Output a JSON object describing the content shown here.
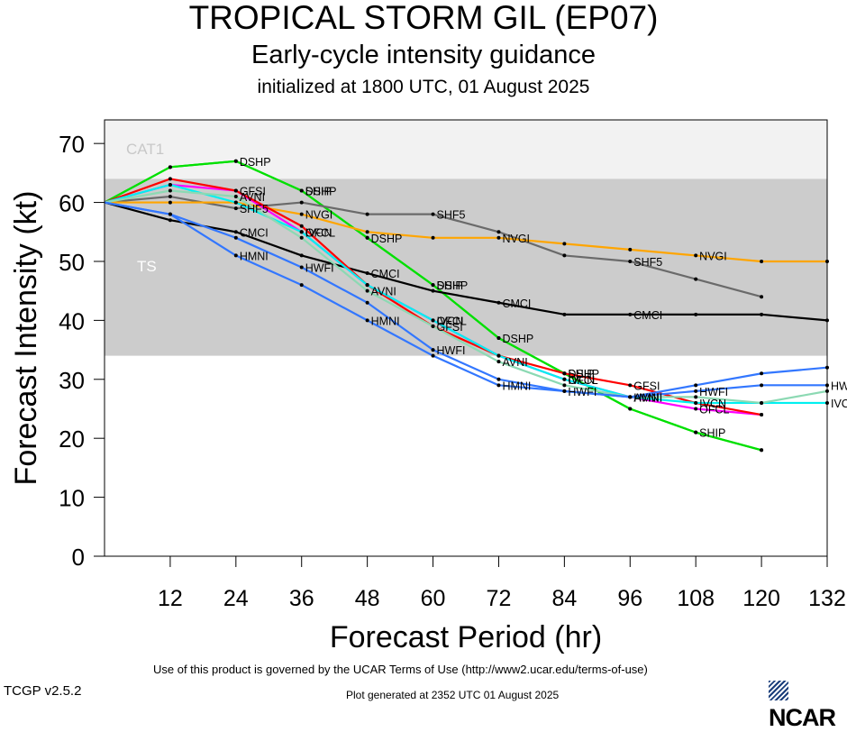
{
  "header": {
    "title": "TROPICAL STORM GIL (EP07)",
    "subtitle": "Early-cycle intensity guidance",
    "init": "initialized at 1800 UTC, 01 August 2025"
  },
  "footer": {
    "terms": "Use of this product is governed by the UCAR Terms of Use (http://www2.ucar.edu/terms-of-use)",
    "version": "TCGP v2.5.2",
    "generated": "Plot generated at 2352 UTC   01 August 2025",
    "logo": "NCAR"
  },
  "chart_data": {
    "type": "line",
    "title": "TROPICAL STORM GIL (EP07)",
    "xlabel": "Forecast Period (hr)",
    "ylabel": "Forecast Intensity (kt)",
    "xlim": [
      0,
      132
    ],
    "ylim": [
      0,
      74
    ],
    "xticks": [
      12,
      24,
      36,
      48,
      60,
      72,
      84,
      96,
      108,
      120,
      132
    ],
    "yticks": [
      0,
      10,
      20,
      30,
      40,
      50,
      60,
      70
    ],
    "bands": [
      {
        "label": "CAT1",
        "from": 64,
        "to": 74,
        "color": "#f2f2f2",
        "text_color": "#c8c8c8"
      },
      {
        "label": "TS",
        "from": 34,
        "to": 64,
        "color": "#cccccc",
        "text_color": "#ffffff"
      }
    ],
    "series": [
      {
        "name": "DSHP",
        "color": "#00e000",
        "labels": [
          "DSHP",
          "DSHP",
          "DSHP",
          "DSHP",
          "DSHP",
          "DSHP"
        ],
        "x": [
          0,
          12,
          24,
          36,
          48,
          60,
          72,
          84,
          96,
          108,
          120
        ],
        "y": [
          60,
          66,
          67,
          62,
          54,
          46,
          37,
          31,
          25,
          21,
          18
        ]
      },
      {
        "name": "SHIP",
        "color": "#00e000",
        "labels": [
          "SHIP",
          "SHIP",
          "SHIP",
          "SHIP"
        ],
        "x": [
          0,
          12,
          24,
          36,
          48,
          60,
          72,
          84,
          96,
          108,
          120
        ],
        "y": [
          60,
          66,
          67,
          62,
          54,
          46,
          37,
          31,
          25,
          21,
          18
        ]
      },
      {
        "name": "SHF5",
        "color": "#6a6a6a",
        "labels": [
          "SHF5",
          "SHF5",
          "SHF5"
        ],
        "x": [
          0,
          12,
          24,
          36,
          48,
          60,
          72,
          84,
          96,
          108,
          120
        ],
        "y": [
          60,
          61,
          59,
          60,
          58,
          58,
          55,
          51,
          50,
          47,
          44
        ]
      },
      {
        "name": "NVGI",
        "color": "#ffa500",
        "labels": [
          "NVGI",
          "NVGI",
          "NVGI"
        ],
        "x": [
          0,
          12,
          24,
          36,
          48,
          60,
          72,
          84,
          96,
          108,
          120,
          132
        ],
        "y": [
          60,
          60,
          60,
          58,
          55,
          54,
          54,
          53,
          52,
          51,
          50,
          50
        ]
      },
      {
        "name": "CMCI",
        "color": "#000000",
        "labels": [
          "CMCI",
          "CMCI",
          "CMCI",
          "CMCI"
        ],
        "x": [
          0,
          12,
          24,
          36,
          48,
          60,
          72,
          84,
          96,
          108,
          120,
          132
        ],
        "y": [
          60,
          57,
          55,
          51,
          48,
          45,
          43,
          41,
          41,
          41,
          41,
          40
        ]
      },
      {
        "name": "OFCL",
        "color": "#ff00ff",
        "labels": [
          "OFCL",
          "OFCL",
          "OFCL",
          "OFCL"
        ],
        "x": [
          0,
          12,
          24,
          36,
          48,
          60,
          72,
          84,
          96,
          108,
          120
        ],
        "y": [
          60,
          63,
          62,
          55,
          46,
          40,
          34,
          30,
          27,
          25,
          24
        ]
      },
      {
        "name": "GFSI",
        "color": "#ff0000",
        "labels": [
          "GFSI",
          "GFSI",
          "GFSI"
        ],
        "x": [
          0,
          12,
          24,
          36,
          48,
          60,
          72,
          84,
          96,
          108,
          120
        ],
        "y": [
          60,
          64,
          62,
          56,
          46,
          39,
          34,
          31,
          29,
          26,
          24
        ]
      },
      {
        "name": "IVCN",
        "color": "#00f0f0",
        "labels": [
          "IVCN",
          "IVCN",
          "IVCN",
          "IVCN",
          "IVCN"
        ],
        "x": [
          0,
          12,
          24,
          36,
          48,
          60,
          72,
          84,
          96,
          108,
          120,
          132
        ],
        "y": [
          60,
          63,
          60,
          55,
          46,
          40,
          34,
          30,
          27,
          26,
          26,
          26
        ]
      },
      {
        "name": "AVNI",
        "color": "#8cd9b3",
        "labels": [
          "AVNI",
          "AVNI",
          "AVNI",
          "AVNI"
        ],
        "x": [
          0,
          12,
          24,
          36,
          48,
          60,
          72,
          84,
          96,
          108,
          120,
          132
        ],
        "y": [
          60,
          62,
          61,
          54,
          45,
          39,
          33,
          29,
          27,
          27,
          26,
          28
        ]
      },
      {
        "name": "HWFI",
        "color": "#3377ff",
        "labels": [
          "HWFI",
          "HWFI",
          "HWFI",
          "HWFI",
          "HWFI"
        ],
        "x": [
          0,
          12,
          24,
          36,
          48,
          60,
          72,
          84,
          96,
          108,
          120,
          132
        ],
        "y": [
          60,
          58,
          54,
          49,
          43,
          35,
          30,
          28,
          27,
          28,
          29,
          29
        ]
      },
      {
        "name": "HMNI",
        "color": "#3377ff",
        "labels": [
          "HMNI",
          "HMNI",
          "HMNI",
          "HMNI"
        ],
        "x": [
          0,
          12,
          24,
          36,
          48,
          60,
          72,
          84,
          96,
          108,
          120,
          132
        ],
        "y": [
          60,
          58,
          51,
          46,
          40,
          34,
          29,
          28,
          27,
          29,
          31,
          32
        ]
      }
    ]
  }
}
